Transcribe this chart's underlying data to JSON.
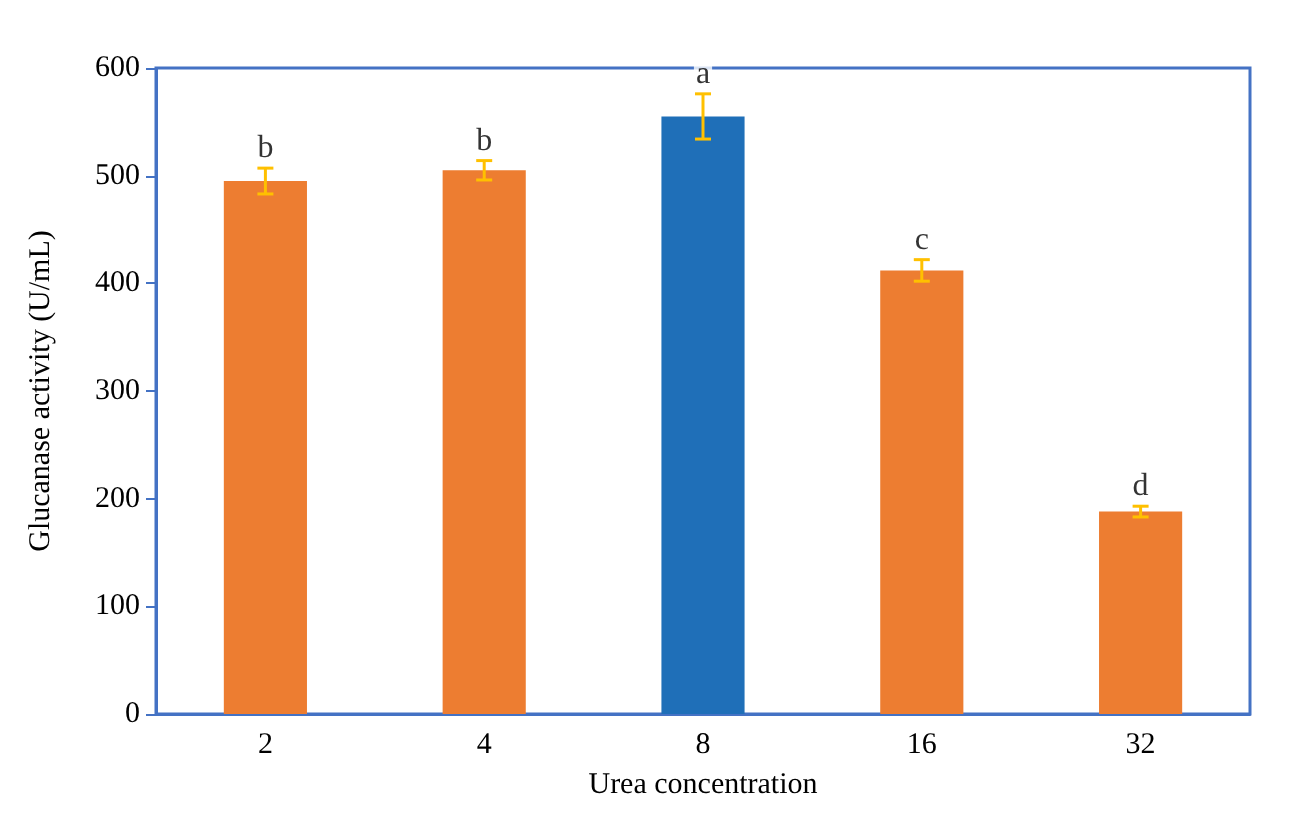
{
  "chart_data": {
    "type": "bar",
    "xlabel": "Urea concentration",
    "ylabel": "Glucanase activity (U/mL)",
    "categories": [
      "2",
      "4",
      "8",
      "16",
      "32"
    ],
    "values": [
      495,
      505,
      555,
      412,
      188
    ],
    "colors": [
      "#ed7d31",
      "#ed7d31",
      "#1f6fb8",
      "#ed7d31",
      "#ed7d31"
    ],
    "errors": [
      12,
      9,
      21,
      10,
      5
    ],
    "ylim": [
      0,
      600
    ],
    "yticks": [
      0,
      100,
      200,
      300,
      400,
      500,
      600
    ],
    "grid": false,
    "annotations": [
      {
        "text": "b",
        "x": "2",
        "y": 507
      },
      {
        "text": "b",
        "x": "4",
        "y": 514
      },
      {
        "text": "a",
        "x": "8",
        "y": 576
      },
      {
        "text": "c",
        "x": "16",
        "y": 422
      },
      {
        "text": "d",
        "x": "32",
        "y": 193
      }
    ]
  }
}
